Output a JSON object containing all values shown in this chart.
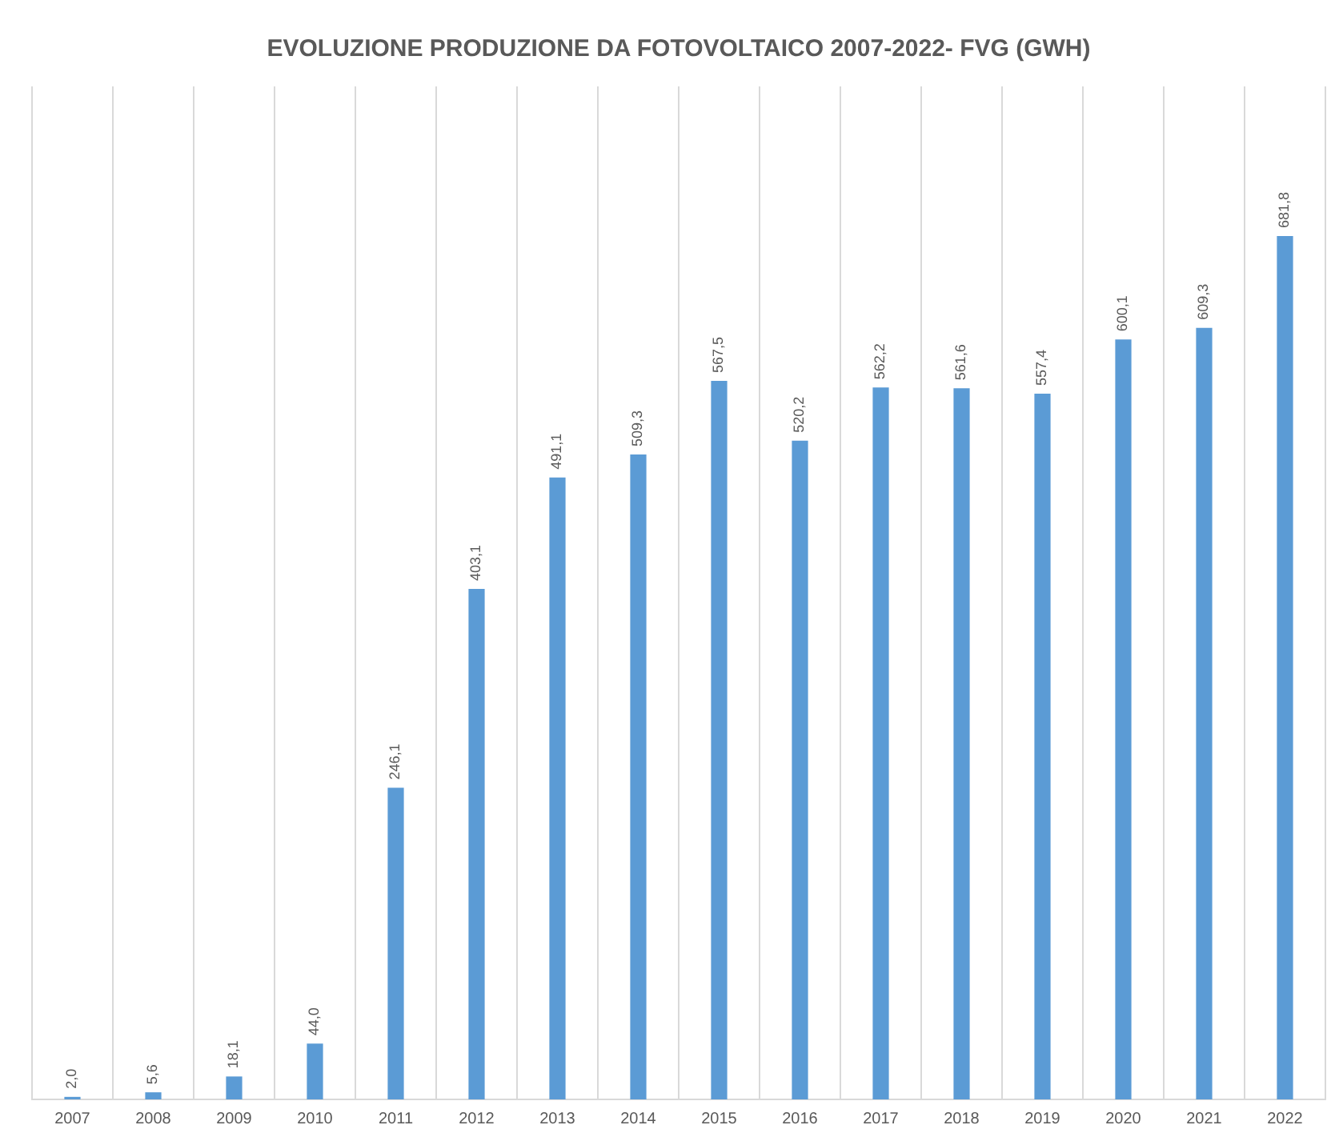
{
  "chart_data": {
    "type": "bar",
    "title": "EVOLUZIONE PRODUZIONE DA FOTOVOLTAICO 2007-2022- FVG (GWH)",
    "categories": [
      "2007",
      "2008",
      "2009",
      "2010",
      "2011",
      "2012",
      "2013",
      "2014",
      "2015",
      "2016",
      "2017",
      "2018",
      "2019",
      "2020",
      "2021",
      "2022"
    ],
    "values": [
      2.0,
      5.6,
      18.1,
      44.0,
      246.1,
      403.1,
      491.1,
      509.3,
      567.5,
      520.2,
      562.2,
      561.6,
      557.4,
      600.1,
      609.3,
      681.8
    ],
    "value_labels": [
      "2,0",
      "5,6",
      "18,1",
      "44,0",
      "246,1",
      "403,1",
      "491,1",
      "509,3",
      "567,5",
      "520,2",
      "562,2",
      "561,6",
      "557,4",
      "600,1",
      "609,3",
      "681,8"
    ],
    "color": "#5b9bd5",
    "grid": "x",
    "legend": false
  }
}
